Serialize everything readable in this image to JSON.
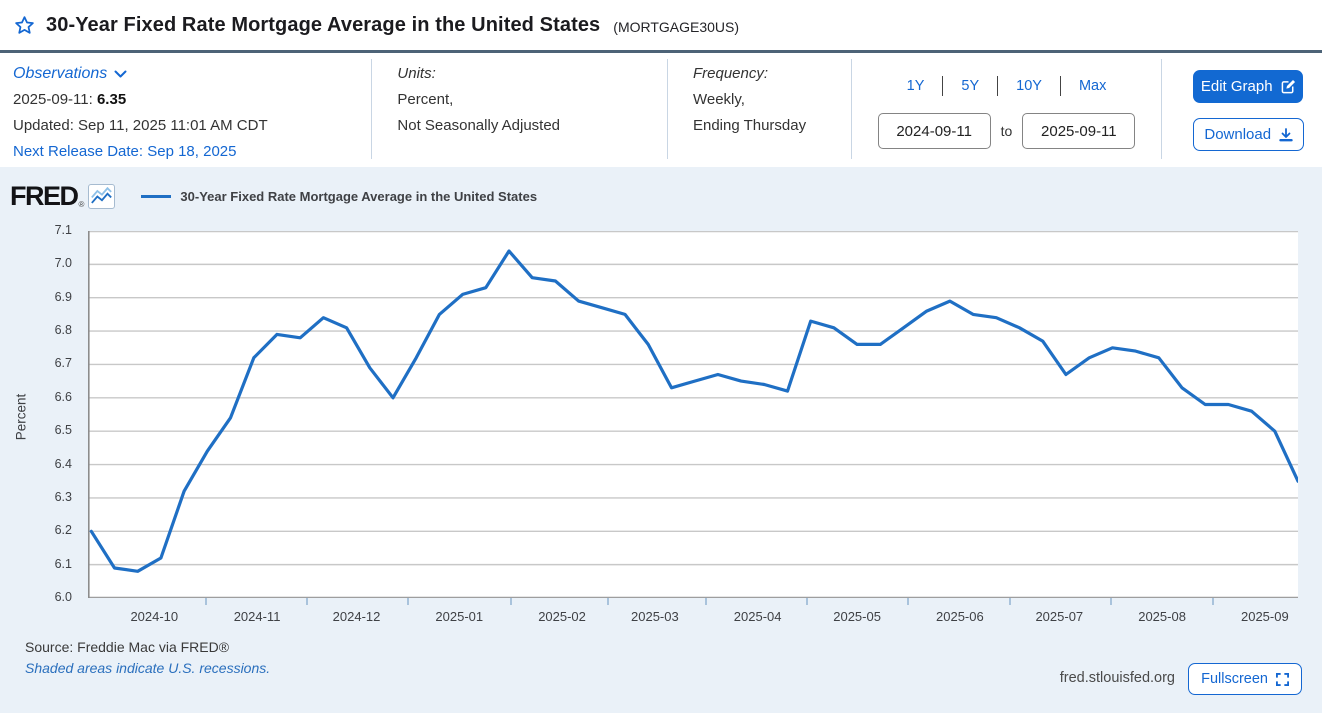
{
  "colors": {
    "accent_blue": "#1467d2",
    "button_blue": "#1269d2",
    "line_blue": "#1f6fc4",
    "header_rule": "#4d6377",
    "chart_bg": "#eaf1f8",
    "gridline": "#c8c8c8",
    "axis_line": "#8c8c8c"
  },
  "header": {
    "title": "30-Year Fixed Rate Mortgage Average in the United States",
    "series_id": "(MORTGAGE30US)"
  },
  "info": {
    "observations_label": "Observations",
    "latest_date": "2025-09-11:",
    "latest_value": "6.35",
    "updated": "Updated: Sep 11, 2025 11:01 AM CDT",
    "next_release": "Next Release Date: Sep 18, 2025",
    "units_label": "Units:",
    "units_line1": "Percent,",
    "units_line2": "Not Seasonally Adjusted",
    "frequency_label": "Frequency:",
    "frequency_line1": "Weekly,",
    "frequency_line2": "Ending Thursday",
    "ranges": [
      "1Y",
      "5Y",
      "10Y",
      "Max"
    ],
    "date_start": "2024-09-11",
    "date_to_label": "to",
    "date_end": "2025-09-11",
    "edit_graph_label": "Edit Graph",
    "download_label": "Download"
  },
  "chart": {
    "brand": "FRED",
    "brand_reg": "®",
    "legend_label": "30-Year Fixed Rate Mortgage Average in the United States",
    "ylabel": "Percent"
  },
  "chart_data": {
    "type": "line",
    "title": "30-Year Fixed Rate Mortgage Average in the United States",
    "ylabel": "Percent",
    "units": "Percent, Not Seasonally Adjusted",
    "frequency": "Weekly, Ending Thursday",
    "ylim": [
      6.0,
      7.1
    ],
    "y_ticks": [
      7.1,
      7.0,
      6.9,
      6.8,
      6.7,
      6.6,
      6.5,
      6.4,
      6.3,
      6.2,
      6.1,
      6.0
    ],
    "grid": "horizontal",
    "legend_position": "top-left",
    "x_range": [
      "2024-09-11",
      "2025-09-11"
    ],
    "total_days": 365,
    "x_ticks": [
      {
        "label": "2024-10",
        "day": 20
      },
      {
        "label": "2024-11",
        "day": 51
      },
      {
        "label": "2024-12",
        "day": 81
      },
      {
        "label": "2025-01",
        "day": 112
      },
      {
        "label": "2025-02",
        "day": 143
      },
      {
        "label": "2025-03",
        "day": 171
      },
      {
        "label": "2025-04",
        "day": 202
      },
      {
        "label": "2025-05",
        "day": 232
      },
      {
        "label": "2025-06",
        "day": 263
      },
      {
        "label": "2025-07",
        "day": 293
      },
      {
        "label": "2025-08",
        "day": 324
      },
      {
        "label": "2025-09",
        "day": 355
      }
    ],
    "dates": [
      "2024-09-12",
      "2024-09-19",
      "2024-09-26",
      "2024-10-03",
      "2024-10-10",
      "2024-10-17",
      "2024-10-24",
      "2024-10-31",
      "2024-11-07",
      "2024-11-14",
      "2024-11-21",
      "2024-11-28",
      "2024-12-05",
      "2024-12-12",
      "2024-12-19",
      "2024-12-26",
      "2025-01-02",
      "2025-01-09",
      "2025-01-16",
      "2025-01-23",
      "2025-01-30",
      "2025-02-06",
      "2025-02-13",
      "2025-02-20",
      "2025-02-27",
      "2025-03-06",
      "2025-03-13",
      "2025-03-20",
      "2025-03-27",
      "2025-04-03",
      "2025-04-10",
      "2025-04-17",
      "2025-04-24",
      "2025-05-01",
      "2025-05-08",
      "2025-05-15",
      "2025-05-22",
      "2025-05-29",
      "2025-06-05",
      "2025-06-12",
      "2025-06-19",
      "2025-06-26",
      "2025-07-03",
      "2025-07-10",
      "2025-07-17",
      "2025-07-24",
      "2025-07-31",
      "2025-08-07",
      "2025-08-14",
      "2025-08-21",
      "2025-08-28",
      "2025-09-04",
      "2025-09-11"
    ],
    "values": [
      6.2,
      6.09,
      6.08,
      6.12,
      6.32,
      6.44,
      6.54,
      6.72,
      6.79,
      6.78,
      6.84,
      6.81,
      6.69,
      6.6,
      6.72,
      6.85,
      6.91,
      6.93,
      7.04,
      6.96,
      6.95,
      6.89,
      6.87,
      6.85,
      6.76,
      6.63,
      6.65,
      6.67,
      6.65,
      6.64,
      6.62,
      6.83,
      6.81,
      6.76,
      6.76,
      6.81,
      6.86,
      6.89,
      6.85,
      6.84,
      6.81,
      6.77,
      6.67,
      6.72,
      6.75,
      6.74,
      6.72,
      6.63,
      6.58,
      6.58,
      6.56,
      6.5,
      6.35
    ],
    "line_color": "#1f6fc4"
  },
  "footer": {
    "source": "Source: Freddie Mac via FRED®",
    "recession_note": "Shaded areas indicate U.S. recessions.",
    "site": "fred.stlouisfed.org",
    "fullscreen_label": "Fullscreen"
  }
}
